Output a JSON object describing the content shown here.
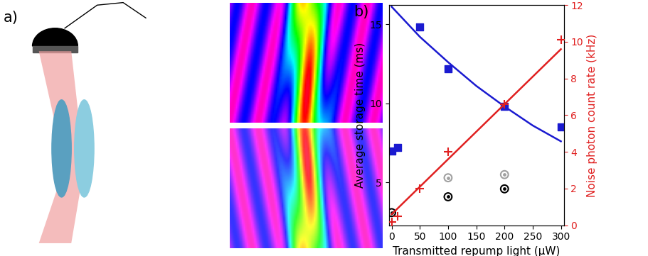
{
  "schematic": {
    "label": "a)"
  },
  "chart_data": {
    "type": "scatter",
    "title": "b)",
    "x_label": "Transmitted repump light (µW)",
    "y_label": "Average storage time (ms)",
    "y2_label": "Noise photon count rate (kHz)",
    "xlim": [
      -5,
      305
    ],
    "xticks": [
      0,
      50,
      100,
      150,
      200,
      250,
      300
    ],
    "ylim": [
      2.3,
      16.2
    ],
    "yticks": [
      5,
      10,
      15
    ],
    "y2lim": [
      0,
      12
    ],
    "y2ticks": [
      0,
      2,
      4,
      6,
      8,
      10,
      12
    ],
    "series": [
      {
        "type": "line",
        "color": "#1a1ad0",
        "line_style": "solid",
        "x": [
          0,
          50,
          100,
          150,
          200,
          250,
          300
        ],
        "values": [
          16.1,
          14.2,
          12.6,
          11.1,
          9.8,
          8.6,
          7.6
        ]
      },
      {
        "type": "scatter",
        "color": "#1a1ad0",
        "marker": "square",
        "x": [
          0,
          10,
          50,
          100,
          200,
          300
        ],
        "values": [
          7.0,
          7.2,
          14.8,
          12.2,
          9.8,
          8.5
        ]
      },
      {
        "type": "scatter",
        "color": "#000000",
        "marker": "circle",
        "x": [
          0,
          100,
          200
        ],
        "values": [
          3.1,
          4.1,
          4.6
        ]
      },
      {
        "type": "scatter",
        "color": "#a0a0a0",
        "marker": "circle",
        "x": [
          100,
          200
        ],
        "values": [
          5.3,
          5.5
        ]
      },
      {
        "type": "line",
        "color": "#e02020",
        "line_style": "solid",
        "axis": "y2",
        "x": [
          0,
          300
        ],
        "values": [
          0.6,
          9.6
        ]
      },
      {
        "type": "scatter",
        "color": "#e02020",
        "marker": "plus",
        "axis": "y2",
        "x": [
          0,
          10,
          50,
          100,
          200,
          300
        ],
        "values": [
          0.2,
          0.5,
          2.0,
          4.0,
          6.6,
          10.1
        ]
      }
    ]
  }
}
